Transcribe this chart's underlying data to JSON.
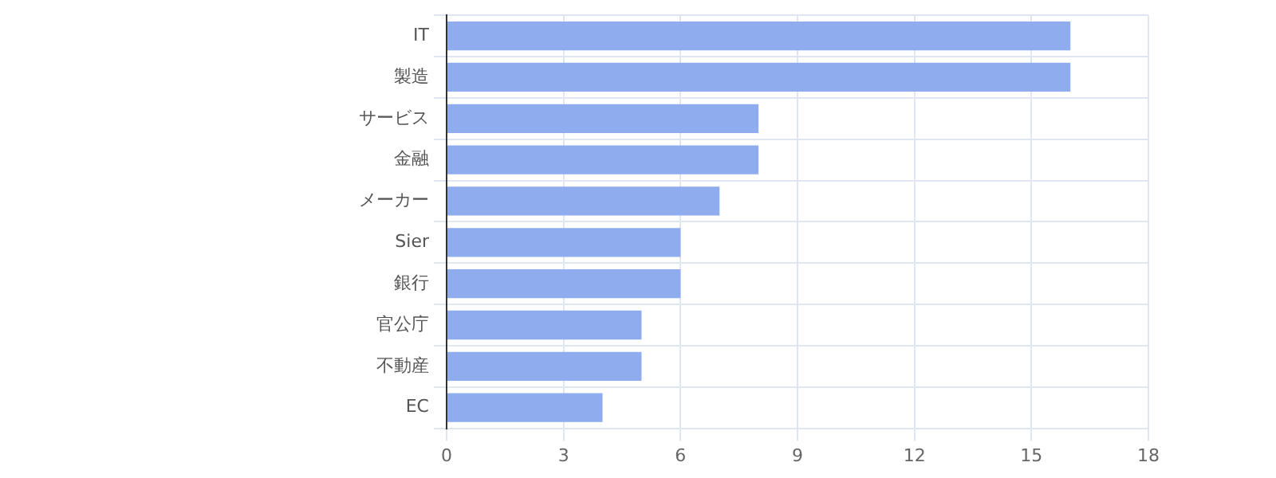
{
  "chart_data": {
    "type": "bar",
    "orientation": "horizontal",
    "categories": [
      "IT",
      "製造",
      "サービス",
      "金融",
      "メーカー",
      "Sier",
      "銀行",
      "官公庁",
      "不動産",
      "EC"
    ],
    "values": [
      16,
      16,
      8,
      8,
      7,
      6,
      6,
      5,
      5,
      4
    ],
    "color": "#8fadee",
    "xlim": [
      0,
      18
    ],
    "xticks": [
      0,
      3,
      6,
      9,
      12,
      15,
      18
    ],
    "grid": true,
    "legend": false
  }
}
